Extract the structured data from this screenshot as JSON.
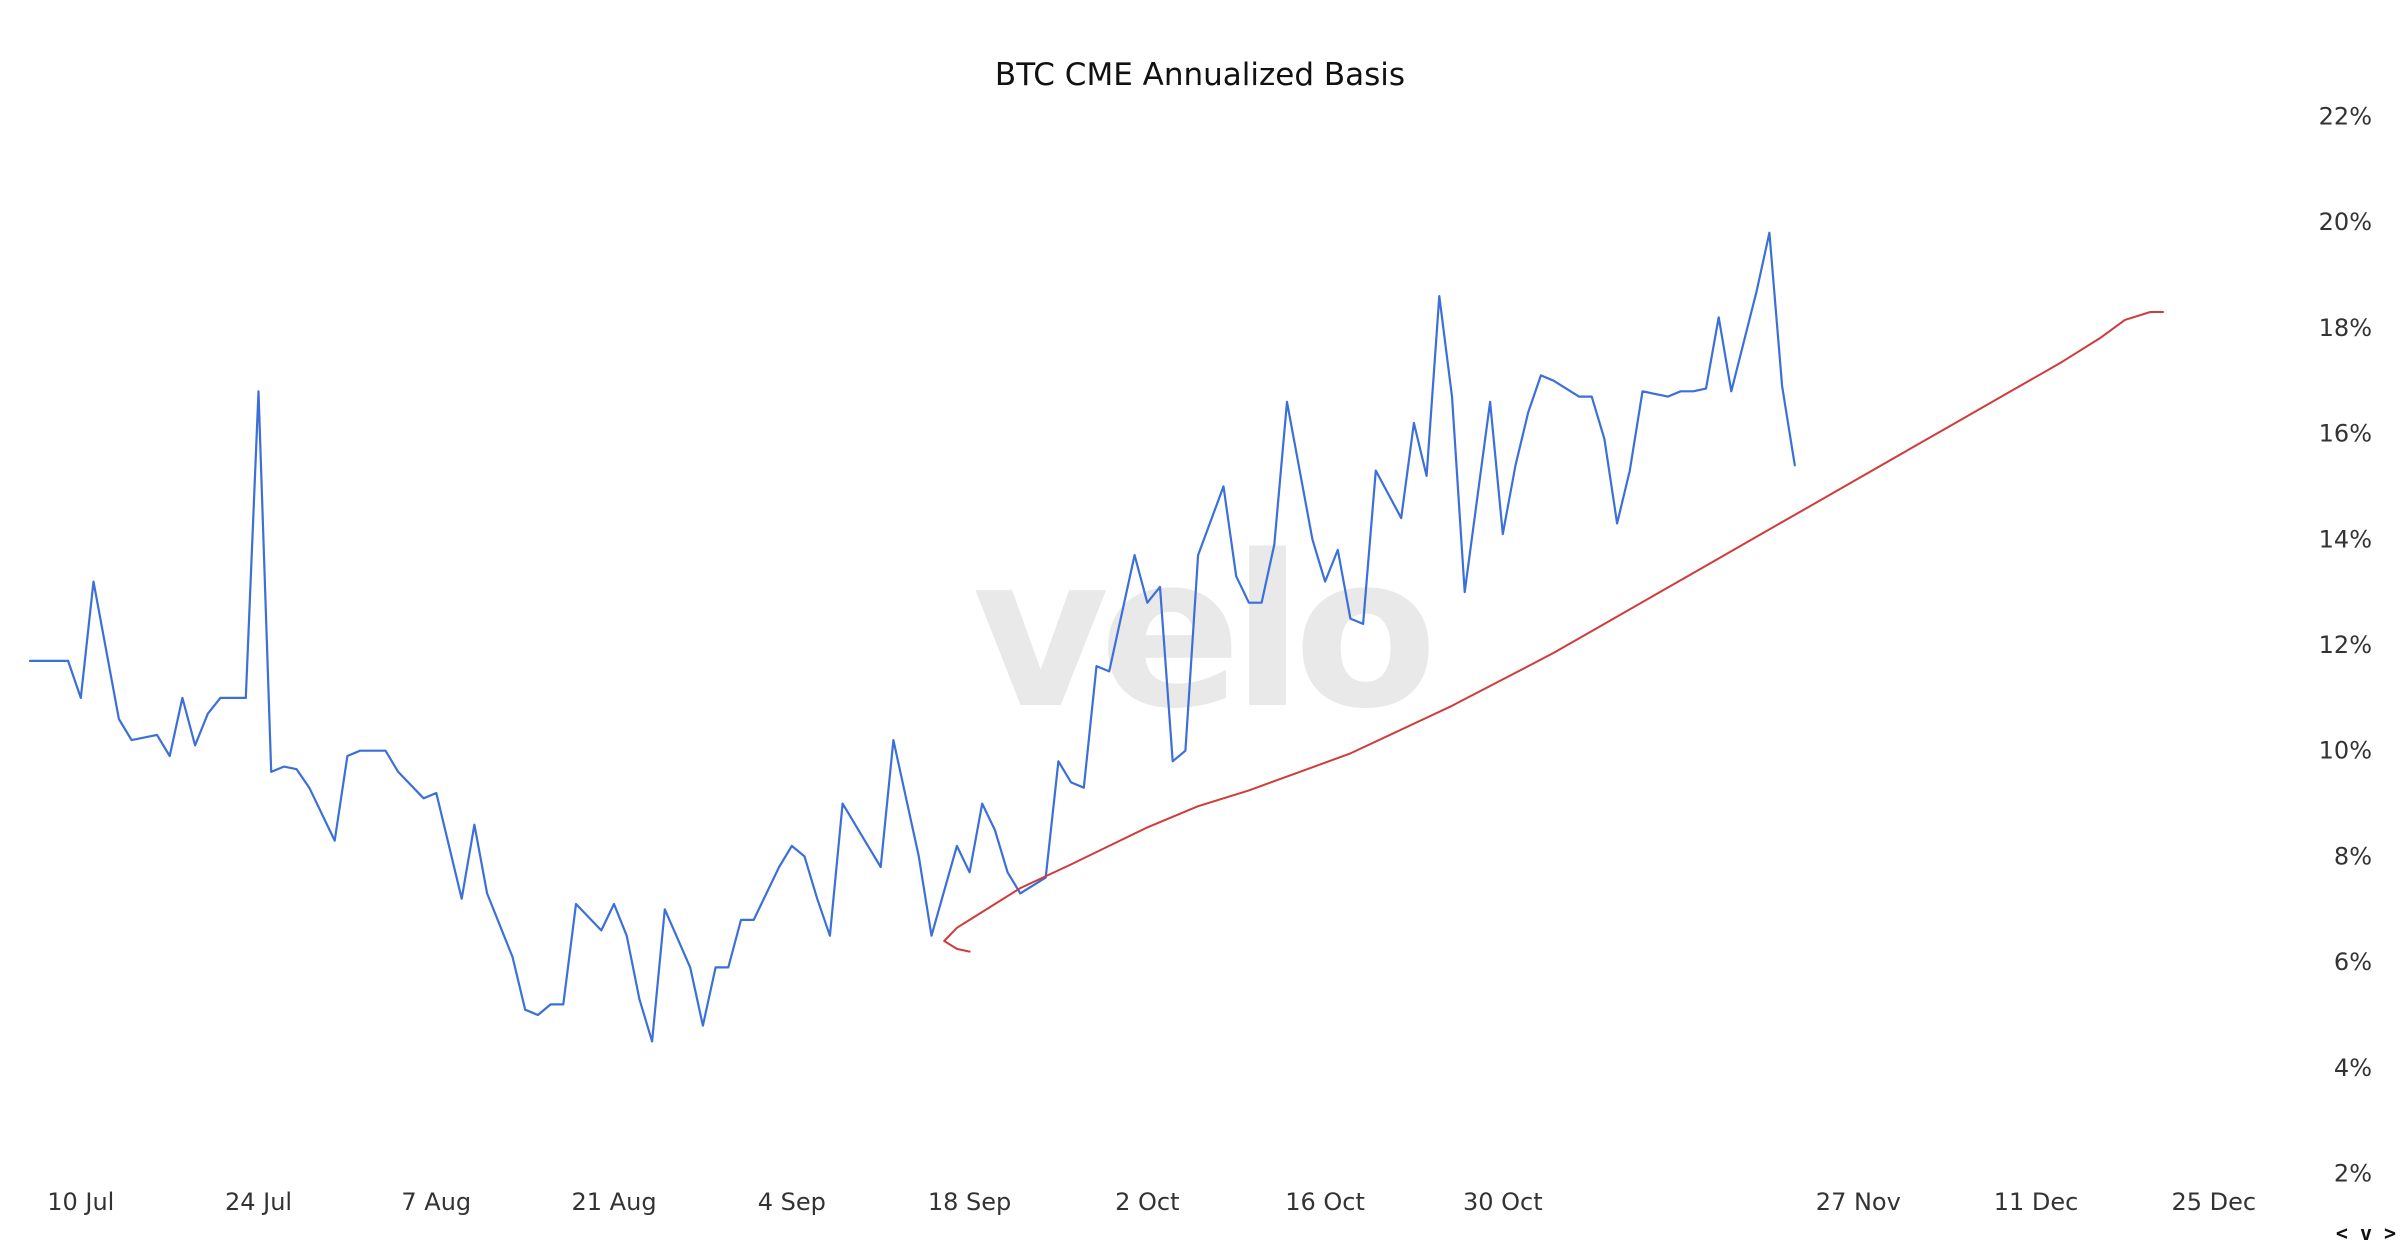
{
  "chart_data": {
    "type": "line",
    "title": "BTC CME Annualized Basis",
    "watermark": "velo",
    "x_axis": {
      "type": "date",
      "range": [
        "2023-07-06",
        "2023-12-31"
      ],
      "ticks": [
        {
          "date": "2023-07-10",
          "label": "10 Jul"
        },
        {
          "date": "2023-07-24",
          "label": "24 Jul"
        },
        {
          "date": "2023-08-07",
          "label": "7 Aug"
        },
        {
          "date": "2023-08-21",
          "label": "21 Aug"
        },
        {
          "date": "2023-09-04",
          "label": "4 Sep"
        },
        {
          "date": "2023-09-18",
          "label": "18 Sep"
        },
        {
          "date": "2023-10-02",
          "label": "2 Oct"
        },
        {
          "date": "2023-10-16",
          "label": "16 Oct"
        },
        {
          "date": "2023-10-30",
          "label": "30 Oct"
        },
        {
          "date": "2023-11-27",
          "label": "27 Nov"
        },
        {
          "date": "2023-12-11",
          "label": "11 Dec"
        },
        {
          "date": "2023-12-25",
          "label": "25 Dec"
        }
      ]
    },
    "y_axis": {
      "position": "right",
      "unit": "%",
      "range": [
        1.5,
        22.5
      ],
      "ticks": [
        {
          "value": 2,
          "label": "2%"
        },
        {
          "value": 4,
          "label": "4%"
        },
        {
          "value": 6,
          "label": "6%"
        },
        {
          "value": 8,
          "label": "8%"
        },
        {
          "value": 10,
          "label": "10%"
        },
        {
          "value": 12,
          "label": "12%"
        },
        {
          "value": 14,
          "label": "14%"
        },
        {
          "value": 16,
          "label": "16%"
        },
        {
          "value": 18,
          "label": "18%"
        },
        {
          "value": 20,
          "label": "20%"
        },
        {
          "value": 22,
          "label": "22%"
        }
      ]
    },
    "grid": false,
    "legend": "none",
    "series": [
      {
        "color": "#3b6fd9",
        "points": [
          [
            "2023-07-06",
            11.7
          ],
          [
            "2023-07-07",
            11.7
          ],
          [
            "2023-07-09",
            11.7
          ],
          [
            "2023-07-10",
            11.0
          ],
          [
            "2023-07-11",
            13.2
          ],
          [
            "2023-07-12",
            11.9
          ],
          [
            "2023-07-13",
            10.6
          ],
          [
            "2023-07-14",
            10.2
          ],
          [
            "2023-07-16",
            10.3
          ],
          [
            "2023-07-17",
            9.9
          ],
          [
            "2023-07-18",
            11.0
          ],
          [
            "2023-07-19",
            10.1
          ],
          [
            "2023-07-20",
            10.7
          ],
          [
            "2023-07-21",
            11.0
          ],
          [
            "2023-07-23",
            11.0
          ],
          [
            "2023-07-24",
            16.8
          ],
          [
            "2023-07-25",
            9.6
          ],
          [
            "2023-07-26",
            9.7
          ],
          [
            "2023-07-27",
            9.65
          ],
          [
            "2023-07-28",
            9.3
          ],
          [
            "2023-07-30",
            8.3
          ],
          [
            "2023-07-31",
            9.9
          ],
          [
            "2023-08-01",
            10.0
          ],
          [
            "2023-08-02",
            10.0
          ],
          [
            "2023-08-03",
            10.0
          ],
          [
            "2023-08-04",
            9.6
          ],
          [
            "2023-08-06",
            9.1
          ],
          [
            "2023-08-07",
            9.2
          ],
          [
            "2023-08-08",
            8.2
          ],
          [
            "2023-08-09",
            7.2
          ],
          [
            "2023-08-10",
            8.6
          ],
          [
            "2023-08-11",
            7.3
          ],
          [
            "2023-08-13",
            6.1
          ],
          [
            "2023-08-14",
            5.1
          ],
          [
            "2023-08-15",
            5.0
          ],
          [
            "2023-08-16",
            5.2
          ],
          [
            "2023-08-17",
            5.2
          ],
          [
            "2023-08-18",
            7.1
          ],
          [
            "2023-08-20",
            6.6
          ],
          [
            "2023-08-21",
            7.1
          ],
          [
            "2023-08-22",
            6.5
          ],
          [
            "2023-08-23",
            5.3
          ],
          [
            "2023-08-24",
            4.5
          ],
          [
            "2023-08-25",
            7.0
          ],
          [
            "2023-08-27",
            5.9
          ],
          [
            "2023-08-28",
            4.8
          ],
          [
            "2023-08-29",
            5.9
          ],
          [
            "2023-08-30",
            5.9
          ],
          [
            "2023-08-31",
            6.8
          ],
          [
            "2023-09-01",
            6.8
          ],
          [
            "2023-09-03",
            7.8
          ],
          [
            "2023-09-04",
            8.2
          ],
          [
            "2023-09-05",
            8.0
          ],
          [
            "2023-09-06",
            7.2
          ],
          [
            "2023-09-07",
            6.5
          ],
          [
            "2023-09-08",
            9.0
          ],
          [
            "2023-09-10",
            8.2
          ],
          [
            "2023-09-11",
            7.8
          ],
          [
            "2023-09-12",
            10.2
          ],
          [
            "2023-09-13",
            9.1
          ],
          [
            "2023-09-14",
            8.0
          ],
          [
            "2023-09-15",
            6.5
          ],
          [
            "2023-09-17",
            8.2
          ],
          [
            "2023-09-18",
            7.7
          ],
          [
            "2023-09-19",
            9.0
          ],
          [
            "2023-09-20",
            8.5
          ],
          [
            "2023-09-21",
            7.7
          ],
          [
            "2023-09-22",
            7.3
          ],
          [
            "2023-09-24",
            7.6
          ],
          [
            "2023-09-25",
            9.8
          ],
          [
            "2023-09-26",
            9.4
          ],
          [
            "2023-09-27",
            9.3
          ],
          [
            "2023-09-28",
            11.6
          ],
          [
            "2023-09-29",
            11.5
          ],
          [
            "2023-10-01",
            13.7
          ],
          [
            "2023-10-02",
            12.8
          ],
          [
            "2023-10-03",
            13.1
          ],
          [
            "2023-10-04",
            9.8
          ],
          [
            "2023-10-05",
            10.0
          ],
          [
            "2023-10-06",
            13.7
          ],
          [
            "2023-10-08",
            15.0
          ],
          [
            "2023-10-09",
            13.3
          ],
          [
            "2023-10-10",
            12.8
          ],
          [
            "2023-10-11",
            12.8
          ],
          [
            "2023-10-12",
            13.9
          ],
          [
            "2023-10-13",
            16.6
          ],
          [
            "2023-10-15",
            14.0
          ],
          [
            "2023-10-16",
            13.2
          ],
          [
            "2023-10-17",
            13.8
          ],
          [
            "2023-10-18",
            12.5
          ],
          [
            "2023-10-19",
            12.4
          ],
          [
            "2023-10-20",
            15.3
          ],
          [
            "2023-10-22",
            14.4
          ],
          [
            "2023-10-23",
            16.2
          ],
          [
            "2023-10-24",
            15.2
          ],
          [
            "2023-10-25",
            18.6
          ],
          [
            "2023-10-26",
            16.7
          ],
          [
            "2023-10-27",
            13.0
          ],
          [
            "2023-10-29",
            16.6
          ],
          [
            "2023-10-30",
            14.1
          ],
          [
            "2023-10-31",
            15.4
          ],
          [
            "2023-11-01",
            16.4
          ],
          [
            "2023-11-02",
            17.1
          ],
          [
            "2023-11-03",
            17.0
          ],
          [
            "2023-11-05",
            16.7
          ],
          [
            "2023-11-06",
            16.7
          ],
          [
            "2023-11-07",
            15.9
          ],
          [
            "2023-11-08",
            14.3
          ],
          [
            "2023-11-09",
            15.3
          ],
          [
            "2023-11-10",
            16.8
          ],
          [
            "2023-11-12",
            16.7
          ],
          [
            "2023-11-13",
            16.8
          ],
          [
            "2023-11-14",
            16.8
          ],
          [
            "2023-11-15",
            16.85
          ],
          [
            "2023-11-16",
            18.2
          ],
          [
            "2023-11-17",
            16.8
          ],
          [
            "2023-11-19",
            18.7
          ],
          [
            "2023-11-20",
            19.8
          ],
          [
            "2023-11-21",
            16.9
          ],
          [
            "2023-11-22",
            15.4
          ]
        ]
      },
      {
        "color": "#d03b3b",
        "points": [
          [
            "2023-09-18",
            6.2
          ],
          [
            "2023-09-17",
            6.25
          ],
          [
            "2023-09-16",
            6.4
          ],
          [
            "2023-09-17",
            6.65
          ],
          [
            "2023-09-18",
            6.8
          ],
          [
            "2023-09-22",
            7.4
          ],
          [
            "2023-09-26",
            7.85
          ],
          [
            "2023-09-29",
            8.2
          ],
          [
            "2023-10-02",
            8.55
          ],
          [
            "2023-10-06",
            8.95
          ],
          [
            "2023-10-10",
            9.25
          ],
          [
            "2023-10-14",
            9.6
          ],
          [
            "2023-10-18",
            9.95
          ],
          [
            "2023-10-22",
            10.4
          ],
          [
            "2023-10-26",
            10.85
          ],
          [
            "2023-10-30",
            11.35
          ],
          [
            "2023-11-03",
            11.85
          ],
          [
            "2023-11-07",
            12.4
          ],
          [
            "2023-11-11",
            12.95
          ],
          [
            "2023-11-15",
            13.5
          ],
          [
            "2023-11-19",
            14.05
          ],
          [
            "2023-11-23",
            14.6
          ],
          [
            "2023-11-27",
            15.15
          ],
          [
            "2023-12-01",
            15.7
          ],
          [
            "2023-12-05",
            16.25
          ],
          [
            "2023-12-09",
            16.8
          ],
          [
            "2023-12-13",
            17.35
          ],
          [
            "2023-12-16",
            17.8
          ],
          [
            "2023-12-18",
            18.15
          ],
          [
            "2023-12-20",
            18.3
          ],
          [
            "2023-12-21",
            18.3
          ]
        ]
      }
    ]
  },
  "nav_control": "< v >"
}
